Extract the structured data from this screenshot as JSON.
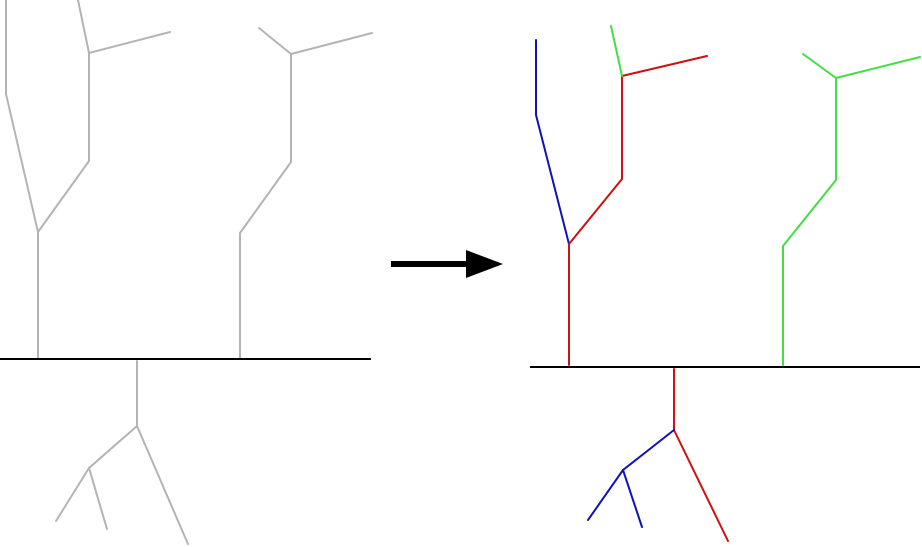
{
  "colors": {
    "background": "#ffffff",
    "original_tree": "#b4b4b4",
    "ground_line": "#000000",
    "arrow": "#000000",
    "red_branch": "#cc1111",
    "blue_branch": "#1111bb",
    "green_branch": "#44dd44"
  },
  "panels": [
    {
      "id": "before",
      "description_label": "",
      "uniform_color": "original_tree"
    },
    {
      "id": "after",
      "description_label": "",
      "uniform_color": null
    }
  ],
  "arrow_icon": "right-arrow-icon"
}
